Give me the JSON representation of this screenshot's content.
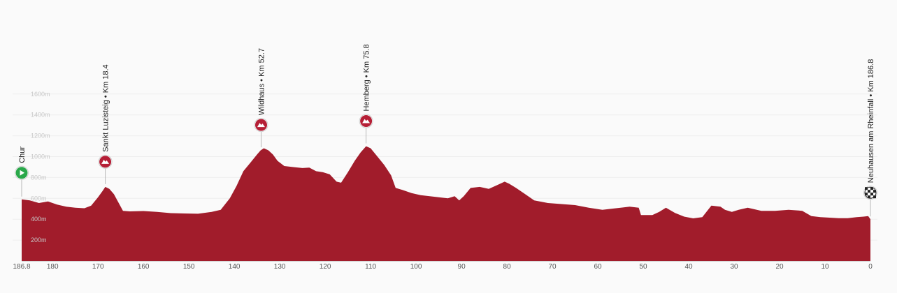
{
  "chart_data": {
    "type": "area",
    "xlabel": "",
    "ylabel": "",
    "x_axis": {
      "reversed": true,
      "range": [
        0,
        186.8
      ],
      "ticks": [
        "186.8",
        "180",
        "170",
        "160",
        "150",
        "140",
        "130",
        "120",
        "110",
        "100",
        "90",
        "80",
        "70",
        "60",
        "50",
        "40",
        "30",
        "20",
        "10",
        "0"
      ]
    },
    "y_axis": {
      "range": [
        0,
        1800
      ],
      "ticks": [
        "200m",
        "400m",
        "600m",
        "800m",
        "1000m",
        "1200m",
        "1400m",
        "1600m"
      ]
    },
    "grid": true,
    "profile_color": "#a11c2b",
    "profile": {
      "x_km_remaining": [
        186.8,
        185,
        183,
        181,
        179,
        177,
        175,
        173,
        171.5,
        170,
        169,
        168.4,
        167.5,
        166.5,
        165.5,
        164.5,
        163,
        160,
        157,
        154,
        151,
        148,
        145,
        143,
        141,
        139.5,
        138,
        136.5,
        135,
        134.2,
        133.5,
        132.5,
        131.5,
        130.5,
        129,
        127,
        125,
        123.5,
        122,
        120.5,
        119,
        117.5,
        116.5,
        115,
        113.5,
        112.2,
        111,
        110,
        108.5,
        107,
        105.5,
        104.5,
        103,
        101,
        99,
        97,
        95,
        93,
        91.5,
        90.5,
        89.5,
        88,
        86,
        84,
        82,
        80.5,
        79.5,
        78,
        76,
        74,
        71,
        68,
        65,
        62,
        59,
        56,
        53,
        51,
        50.5,
        48,
        46.5,
        45,
        43,
        41,
        39,
        37,
        35,
        33,
        32,
        30.5,
        29,
        27,
        24,
        21,
        18,
        15,
        13,
        11,
        9,
        7,
        5,
        3,
        1.5,
        0.5,
        0
      ],
      "elevation_m": [
        590,
        580,
        555,
        570,
        540,
        520,
        510,
        505,
        530,
        610,
        670,
        710,
        690,
        640,
        560,
        480,
        475,
        478,
        470,
        458,
        455,
        452,
        470,
        490,
        600,
        720,
        860,
        940,
        1020,
        1060,
        1080,
        1060,
        1020,
        960,
        910,
        900,
        890,
        895,
        860,
        850,
        830,
        760,
        750,
        850,
        960,
        1040,
        1100,
        1080,
        1000,
        920,
        820,
        700,
        680,
        650,
        630,
        620,
        610,
        600,
        620,
        580,
        620,
        700,
        710,
        690,
        730,
        760,
        740,
        700,
        640,
        580,
        555,
        545,
        535,
        510,
        490,
        505,
        520,
        510,
        440,
        440,
        470,
        510,
        460,
        425,
        408,
        420,
        530,
        520,
        490,
        470,
        490,
        510,
        480,
        480,
        490,
        480,
        430,
        420,
        415,
        410,
        410,
        420,
        425,
        430,
        400
      ]
    },
    "places": [
      {
        "label": "Chur",
        "km": 186.8,
        "kind": "start",
        "color": "#2aa84a"
      },
      {
        "label": "Sankt Luzisteig • Km 18.4",
        "km": 168.4,
        "kind": "climb",
        "color": "#b51f36"
      },
      {
        "label": "Wildhaus • Km 52.7",
        "km": 134.1,
        "kind": "climb",
        "color": "#b51f36"
      },
      {
        "label": "Hemberg • Km 75.8",
        "km": 111.0,
        "kind": "climb",
        "color": "#b51f36"
      },
      {
        "label": "Neuhausen am Rheinfall • Km 186.8",
        "km": 0,
        "kind": "finish",
        "color": "#222222"
      }
    ]
  }
}
